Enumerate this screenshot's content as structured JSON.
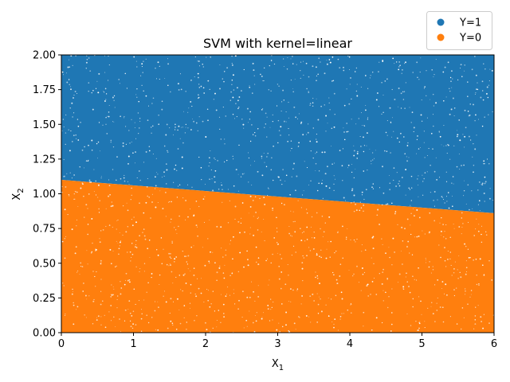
{
  "chart_data": {
    "type": "scatter",
    "title": "SVM with kernel=linear",
    "xlabel": "X",
    "xlabel_sub": "1",
    "ylabel": "X",
    "ylabel_sub": "2",
    "xlim": [
      0,
      6
    ],
    "ylim": [
      0,
      2
    ],
    "x_ticks": [
      "0",
      "1",
      "2",
      "3",
      "4",
      "5",
      "6"
    ],
    "y_ticks": [
      "0.00",
      "0.25",
      "0.50",
      "0.75",
      "1.00",
      "1.25",
      "1.50",
      "1.75",
      "2.00"
    ],
    "grid": false,
    "legend_position": "upper right, outside plot",
    "series": [
      {
        "name": "Y=1",
        "color": "#1f77b4",
        "region": "above decision boundary"
      },
      {
        "name": "Y=0",
        "color": "#ff7f0e",
        "region": "below decision boundary"
      }
    ],
    "decision_boundary": {
      "x": [
        0,
        6
      ],
      "y": [
        1.1,
        0.86
      ]
    }
  }
}
